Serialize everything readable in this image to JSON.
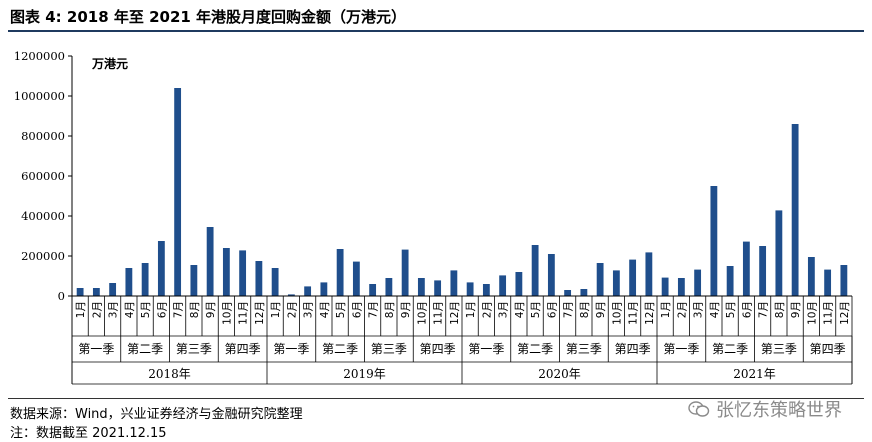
{
  "figure_title": "图表 4:  2018 年至 2021 年港股月度回购金额（万港元）",
  "source_note": "数据来源：Wind，兴业证券经济与金融研究院整理",
  "date_note": "注：数据截至 2021.12.15",
  "watermark_text": "张忆东策略世界",
  "chart_data": {
    "type": "bar",
    "title": "",
    "unit_label": "万港元",
    "ylim": [
      0,
      1200000
    ],
    "yticks": [
      0,
      200000,
      400000,
      600000,
      800000,
      1000000,
      1200000
    ],
    "ytick_labels": [
      "0",
      "200000",
      "400000",
      "600000",
      "800000",
      "1000000",
      "1200000"
    ],
    "grid": false,
    "bar_color": "#1f4e8c",
    "years": [
      {
        "label": "2018年",
        "quarters": [
          "第一季",
          "第二季",
          "第三季",
          "第四季"
        ],
        "months": [
          "1月",
          "2月",
          "3月",
          "4月",
          "5月",
          "6月",
          "7月",
          "8月",
          "9月",
          "10月",
          "11月",
          "12月"
        ],
        "values": [
          40000,
          40000,
          65000,
          140000,
          165000,
          275000,
          1040000,
          155000,
          345000,
          240000,
          228000,
          175000
        ]
      },
      {
        "label": "2019年",
        "quarters": [
          "第一季",
          "第二季",
          "第三季",
          "第四季"
        ],
        "months": [
          "1月",
          "2月",
          "3月",
          "4月",
          "5月",
          "6月",
          "7月",
          "8月",
          "9月",
          "10月",
          "11月",
          "12月"
        ],
        "values": [
          140000,
          8000,
          48000,
          68000,
          235000,
          172000,
          60000,
          90000,
          232000,
          90000,
          78000,
          128000
        ]
      },
      {
        "label": "2020年",
        "quarters": [
          "第一季",
          "第二季",
          "第三季",
          "第四季"
        ],
        "months": [
          "1月",
          "2月",
          "3月",
          "4月",
          "5月",
          "6月",
          "7月",
          "8月",
          "9月",
          "10月",
          "11月",
          "12月"
        ],
        "values": [
          68000,
          60000,
          103000,
          120000,
          255000,
          210000,
          30000,
          35000,
          165000,
          128000,
          182000,
          218000
        ]
      },
      {
        "label": "2021年",
        "quarters": [
          "第一季",
          "第二季",
          "第三季",
          "第四季"
        ],
        "months": [
          "1月",
          "2月",
          "3月",
          "4月",
          "5月",
          "6月",
          "7月",
          "8月",
          "9月",
          "10月",
          "11月",
          "12月"
        ],
        "values": [
          92000,
          90000,
          132000,
          550000,
          150000,
          272000,
          250000,
          428000,
          860000,
          195000,
          132000,
          155000
        ]
      }
    ]
  }
}
